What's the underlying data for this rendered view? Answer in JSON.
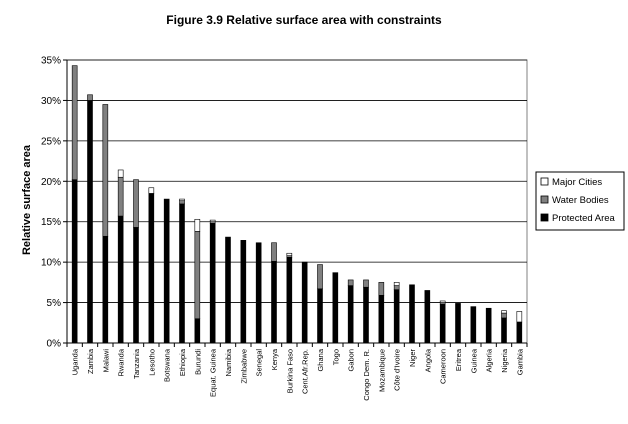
{
  "chart_data": {
    "type": "bar",
    "stacked": true,
    "title": "Figure 3.9 Relative surface area with constraints",
    "xlabel": "",
    "ylabel": "Relative surface area",
    "ylim": [
      0,
      35
    ],
    "yticks": [
      0,
      5,
      10,
      15,
      20,
      25,
      30,
      35
    ],
    "ytick_labels": [
      "0%",
      "5%",
      "10%",
      "15%",
      "20%",
      "25%",
      "30%",
      "35%"
    ],
    "grid": true,
    "legend_position": "right",
    "categories": [
      "Uganda",
      "Zambia",
      "Malawi",
      "Rwanda",
      "Tanzania",
      "Lesotho",
      "Botswana",
      "Ethiopia",
      "Burundi",
      "Equat. Guinea",
      "Namibia",
      "Zimbabwe",
      "Senegal",
      "Kenya",
      "Burkina Faso",
      "Cent.Afr.Rep.",
      "Ghana",
      "Togo",
      "Gabon",
      "Congo Dem. R.",
      "Mozambique",
      "Côte d'Ivoire",
      "Niger",
      "Angola",
      "Cameroon",
      "Eritrea",
      "Guinea",
      "Algeria",
      "Nigeria",
      "Gambia"
    ],
    "series": [
      {
        "name": "Protected Area",
        "color": "#000000",
        "values": [
          20.2,
          30.0,
          13.2,
          15.7,
          14.3,
          18.5,
          17.8,
          17.2,
          3.0,
          14.8,
          13.1,
          12.7,
          12.4,
          10.1,
          10.6,
          10.0,
          6.7,
          8.7,
          7.1,
          6.9,
          5.9,
          6.6,
          7.2,
          6.5,
          4.8,
          4.9,
          4.5,
          4.3,
          3.1,
          2.6
        ]
      },
      {
        "name": "Water Bodies",
        "color": "#808080",
        "values": [
          14.1,
          0.7,
          16.3,
          4.8,
          5.9,
          0,
          0,
          0.4,
          10.8,
          0.2,
          0,
          0,
          0,
          2.3,
          0.2,
          0,
          3.0,
          0,
          0.7,
          0.9,
          1.6,
          0.5,
          0,
          0,
          0.2,
          0,
          0,
          0,
          0.6,
          0
        ]
      },
      {
        "name": "Major Cities",
        "color": "#ffffff",
        "values": [
          0,
          0,
          0,
          0.9,
          0,
          0.7,
          0,
          0.2,
          1.5,
          0.2,
          0,
          0,
          0,
          0,
          0.3,
          0,
          0,
          0,
          0,
          0,
          0,
          0.4,
          0,
          0,
          0.2,
          0,
          0,
          0,
          0.3,
          1.3
        ]
      }
    ],
    "legend_order": [
      "Major Cities",
      "Water Bodies",
      "Protected Area"
    ]
  }
}
